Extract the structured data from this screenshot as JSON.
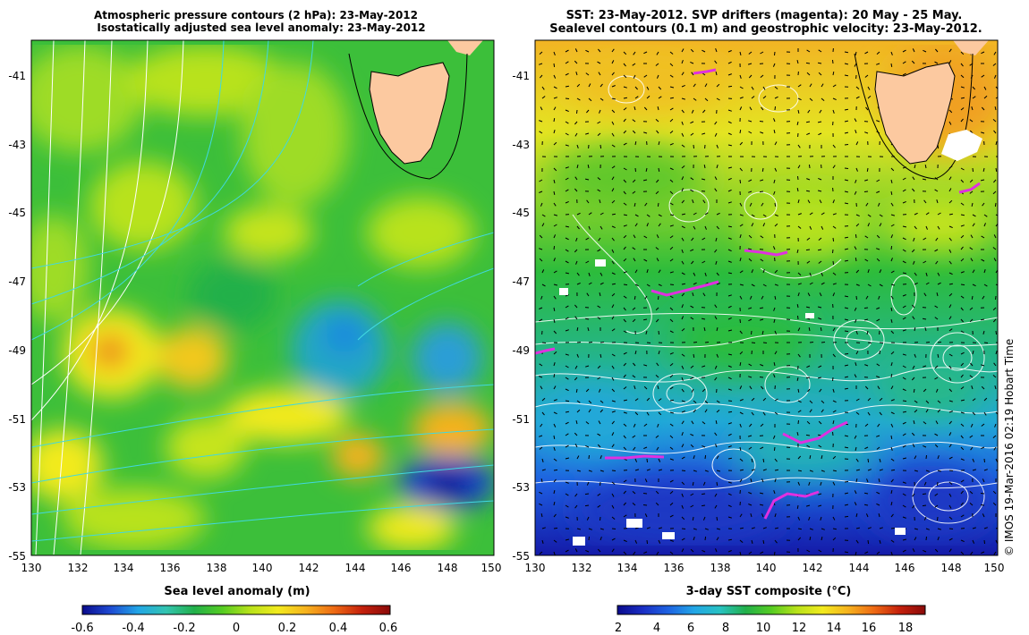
{
  "left_panel": {
    "title_line1": "Atmospheric pressure contours (2 hPa): 23-May-2012",
    "title_line2": "Isostatically adjusted sea level anomaly: 23-May-2012",
    "xaxis_label": "Sea level anomaly (m)",
    "colorbar_ticks": [
      "-0.6",
      "-0.4",
      "-0.2",
      "0",
      "0.2",
      "0.4",
      "0.6"
    ],
    "colorbar_colors": [
      "#0a0a8c",
      "#1e4ad2",
      "#22a6e6",
      "#33c4b0",
      "#22b04a",
      "#55cc22",
      "#b8e21a",
      "#f2ea1e",
      "#f6b21e",
      "#ee6a14",
      "#c4200c",
      "#8a0a0a"
    ]
  },
  "right_panel": {
    "title_line1": "SST: 23-May-2012. SVP drifters (magenta): 20 May - 25 May.",
    "title_line2": "Sealevel contours (0.1 m) and geostrophic velocity: 23-May-2012.",
    "xaxis_label": "3-day SST composite (°C)",
    "colorbar_ticks": [
      "2",
      "4",
      "6",
      "8",
      "10",
      "12",
      "14",
      "16",
      "18"
    ],
    "colorbar_colors": [
      "#0a0a8c",
      "#1a2ec4",
      "#1e64e2",
      "#22a6e6",
      "#28c2c2",
      "#22b04a",
      "#55cc22",
      "#b8e21a",
      "#f2ea1e",
      "#f6b21e",
      "#ee6a14",
      "#c4200c",
      "#8a0a0a"
    ]
  },
  "axes": {
    "lat_ticks": [
      "-41",
      "-43",
      "-45",
      "-47",
      "-49",
      "-51",
      "-53",
      "-55"
    ],
    "lon_ticks": [
      "130",
      "132",
      "134",
      "136",
      "138",
      "140",
      "142",
      "144",
      "146",
      "148",
      "150"
    ]
  },
  "credit": "© IMOS 19-Mar-2016 02:19 Hobart Time",
  "colors": {
    "land": "#fcc9a0",
    "drifter": "#e030e0",
    "sealevel_contour": "#ffffff",
    "pressure_contour_low": "#40d8e0",
    "pressure_contour_high": "#ffffff"
  },
  "map_data": {
    "region": "Tasmania / Southern Ocean",
    "lon_range": [
      130,
      150
    ],
    "lat_range": [
      -55,
      -40
    ]
  }
}
